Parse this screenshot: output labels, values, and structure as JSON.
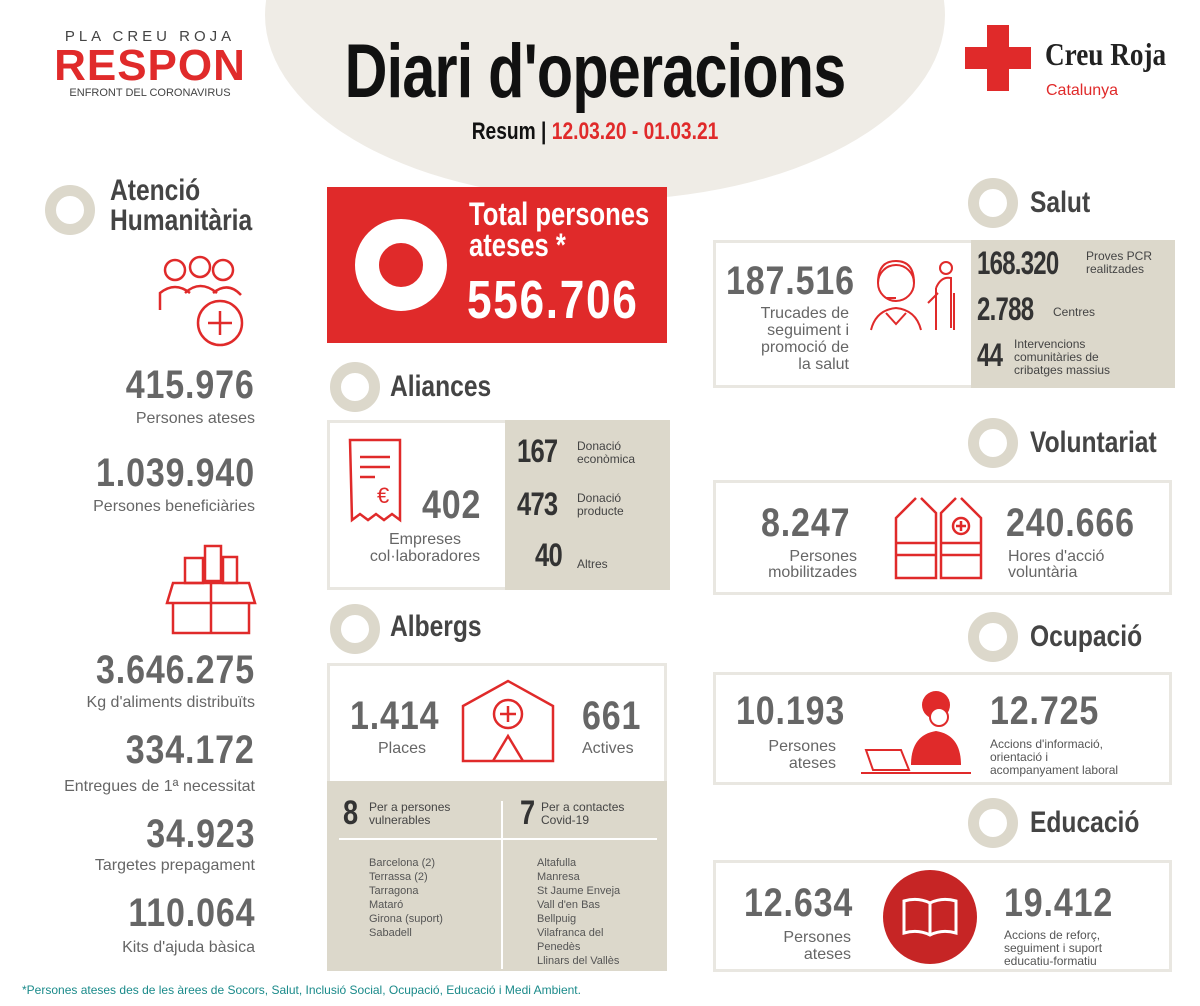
{
  "header": {
    "logo_top": "PLA CREU ROJA",
    "logo_main": "RESPON",
    "logo_sub": "ENFRONT DEL CORONAVIRUS",
    "title": "Diari d'operacions",
    "summary_label": "Resum",
    "date_range": "12.03.20 - 01.03.21",
    "brand_name": "Creu Roja",
    "brand_region": "Catalunya"
  },
  "colors": {
    "accent": "#e02a2a",
    "beige": "#dcd8cb",
    "text": "#555555",
    "footnote": "#1a8a8a"
  },
  "humanitarian": {
    "title_line1": "Atenció",
    "title_line2": "Humanitària",
    "stats": [
      {
        "value": "415.976",
        "label": "Persones ateses"
      },
      {
        "value": "1.039.940",
        "label": "Persones beneficiàries"
      },
      {
        "value": "3.646.275",
        "label": "Kg d'aliments distribuïts"
      },
      {
        "value": "334.172",
        "label": "Entregues de 1ª necessitat"
      },
      {
        "value": "34.923",
        "label": "Targetes prepagament"
      },
      {
        "value": "110.064",
        "label": "Kits d'ajuda bàsica"
      }
    ]
  },
  "total": {
    "label_line1": "Total persones",
    "label_line2": "ateses *",
    "value": "556.706"
  },
  "aliances": {
    "title": "Aliances",
    "value": "402",
    "label_line1": "Empreses",
    "label_line2": "col·laboradores",
    "items": [
      {
        "value": "167",
        "label_line1": "Donació",
        "label_line2": "econòmica"
      },
      {
        "value": "473",
        "label_line1": "Donació",
        "label_line2": "producte"
      },
      {
        "value": "40",
        "label_line1": "Altres",
        "label_line2": ""
      }
    ]
  },
  "albergs": {
    "title": "Albergs",
    "places_value": "1.414",
    "places_label": "Places",
    "active_value": "661",
    "active_label": "Actives",
    "vulnerable": {
      "value": "8",
      "label_line1": "Per a persones",
      "label_line2": "vulnerables",
      "places": [
        "Barcelona (2)",
        "Terrassa (2)",
        "Tarragona",
        "Mataró",
        "Girona (suport)",
        "Sabadell"
      ]
    },
    "covid": {
      "value": "7",
      "label_line1": "Per a contactes",
      "label_line2": "Covid-19",
      "places": [
        "Altafulla",
        "Manresa",
        "St Jaume Enveja",
        "Vall d'en Bas",
        "Bellpuig",
        "Vilafranca del",
        "Penedès",
        "Llinars del Vallès"
      ]
    }
  },
  "salut": {
    "title": "Salut",
    "value": "187.516",
    "label_lines": [
      "Trucades de",
      "seguiment i",
      "promoció de",
      "la salut"
    ],
    "items": [
      {
        "value": "168.320",
        "label_line1": "Proves PCR",
        "label_line2": "realitzades"
      },
      {
        "value": "2.788",
        "label_line1": "Centres",
        "label_line2": ""
      },
      {
        "value": "44",
        "label_line1": "Intervencions",
        "label_line2": "comunitàries de",
        "label_line3": "cribatges massius"
      }
    ]
  },
  "voluntariat": {
    "title": "Voluntariat",
    "left_value": "8.247",
    "left_label_line1": "Persones",
    "left_label_line2": "mobilitzades",
    "right_value": "240.666",
    "right_label_line1": "Hores d'acció",
    "right_label_line2": "voluntària"
  },
  "ocupacio": {
    "title": "Ocupació",
    "left_value": "10.193",
    "left_label_line1": "Persones",
    "left_label_line2": "ateses",
    "right_value": "12.725",
    "right_label_lines": [
      "Accions d'informació,",
      "orientació i",
      "acompanyament laboral"
    ]
  },
  "educacio": {
    "title": "Educació",
    "left_value": "12.634",
    "left_label_line1": "Persones",
    "left_label_line2": "ateses",
    "right_value": "19.412",
    "right_label_lines": [
      "Accions de reforç,",
      "seguiment i suport",
      "educatiu-formatiu"
    ]
  },
  "footnote": "*Persones ateses des de les àrees de Socors, Salut, Inclusió Social, Ocupació, Educació i Medi Ambient."
}
